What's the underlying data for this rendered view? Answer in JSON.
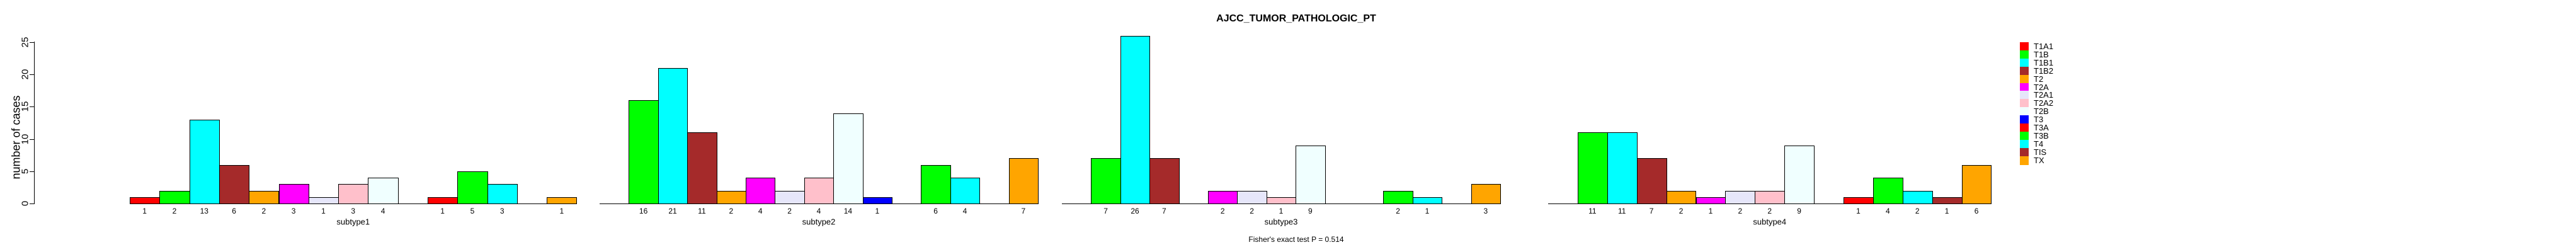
{
  "chart_data": {
    "type": "bar",
    "title": "AJCC_TUMOR_PATHOLOGIC_PT",
    "ylabel": "number of cases",
    "xlabel": "",
    "ylim": [
      0,
      25
    ],
    "yticks": [
      0,
      5,
      10,
      15,
      20,
      25
    ],
    "grid": false,
    "legend_position": "right",
    "bar_borders": true,
    "value_labels_note": "counts shown under bars, zero values omitted",
    "categories": [
      "T1A1",
      "T1B",
      "T1B1",
      "T1B2",
      "T2",
      "T2A",
      "T2A1",
      "T2A2",
      "T2B",
      "T3",
      "T3A",
      "T3B",
      "T4",
      "TIS",
      "TX"
    ],
    "palette": [
      "#FF0000",
      "#00FF00",
      "#00FFFF",
      "#A52A2A",
      "#FFA500",
      "#FF00FF",
      "#E6E6FA",
      "#FFC0CB",
      "#F0FFFF",
      "#0000FF",
      "#FF0000",
      "#00FF00",
      "#00FFFF",
      "#A52A2A",
      "#FFA500"
    ],
    "series": [
      {
        "name": "subtype1",
        "values": [
          1,
          2,
          13,
          6,
          2,
          3,
          1,
          3,
          4,
          0,
          1,
          5,
          3,
          0,
          1
        ]
      },
      {
        "name": "subtype2",
        "values": [
          0,
          16,
          21,
          11,
          2,
          4,
          2,
          4,
          14,
          1,
          0,
          6,
          4,
          0,
          7
        ]
      },
      {
        "name": "subtype3",
        "values": [
          0,
          7,
          26,
          7,
          0,
          2,
          2,
          1,
          9,
          0,
          0,
          2,
          1,
          0,
          3
        ]
      },
      {
        "name": "subtype4",
        "values": [
          0,
          11,
          11,
          7,
          2,
          1,
          2,
          2,
          9,
          0,
          1,
          4,
          2,
          1,
          6
        ]
      }
    ],
    "annotation": "Fisher's exact test P = 0.514",
    "text_color": "#000000",
    "background_color": "#FFFFFF"
  }
}
